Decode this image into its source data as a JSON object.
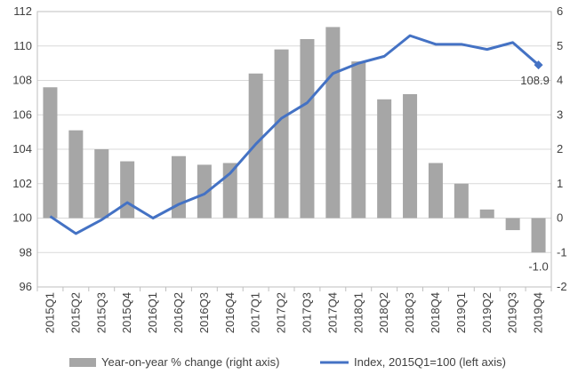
{
  "chart_data": {
    "type": "bar",
    "categories": [
      "2015Q1",
      "2015Q2",
      "2015Q3",
      "2015Q4",
      "2016Q1",
      "2016Q2",
      "2016Q3",
      "2016Q4",
      "2017Q1",
      "2017Q2",
      "2017Q3",
      "2017Q4",
      "2018Q1",
      "2018Q2",
      "2018Q3",
      "2018Q4",
      "2019Q1",
      "2019Q2",
      "2019Q3",
      "2019Q4"
    ],
    "left_axis": {
      "min": 96,
      "max": 112,
      "ticks": [
        96,
        98,
        100,
        102,
        104,
        106,
        108,
        110,
        112
      ]
    },
    "right_axis": {
      "min": -2,
      "max": 6,
      "ticks": [
        -2,
        -1,
        0,
        1,
        2,
        3,
        4,
        5,
        6
      ]
    },
    "series": [
      {
        "name": "Year-on-year % change (right axis)",
        "type": "bar",
        "axis": "right",
        "color": "#a6a6a6",
        "values": [
          3.8,
          2.55,
          2.0,
          1.65,
          0.0,
          1.8,
          1.55,
          1.6,
          4.2,
          4.9,
          5.2,
          5.55,
          4.55,
          3.45,
          3.6,
          1.6,
          1.0,
          0.25,
          -0.35,
          -1.0
        ]
      },
      {
        "name": "Index, 2015Q1=100 (left axis)",
        "type": "line",
        "axis": "left",
        "color": "#4472c4",
        "values": [
          100.1,
          99.1,
          99.9,
          100.9,
          100.0,
          100.8,
          101.4,
          102.6,
          104.3,
          105.8,
          106.7,
          108.4,
          109.0,
          109.4,
          110.6,
          110.1,
          110.1,
          109.8,
          110.2,
          108.9
        ]
      }
    ],
    "data_labels": [
      {
        "series": "Index, 2015Q1=100 (left axis)",
        "category": "2019Q4",
        "text": "108.9"
      },
      {
        "series": "Year-on-year % change (right axis)",
        "category": "2019Q4",
        "text": "-1.0"
      }
    ],
    "legend_position": "bottom",
    "grid": "horizontal",
    "gridline_color": "#d9d9d9",
    "text_color": "#404040"
  }
}
